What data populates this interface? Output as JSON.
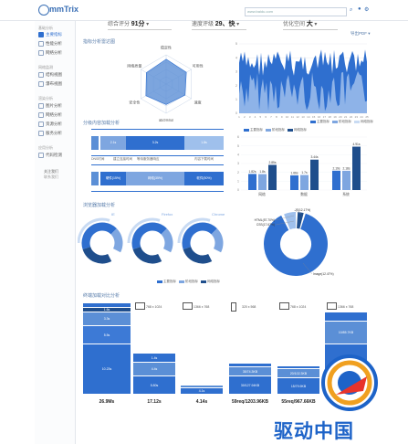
{
  "app": {
    "logo": "mmTrix",
    "search_placeholder": "www.baidu.com"
  },
  "sidebar": {
    "sections": [
      {
        "title": "基础分析",
        "items": [
          "主要指标",
          "性能分析",
          "网络分析"
        ]
      },
      {
        "title": "网络监测",
        "items": [
          "结构视图",
          "瀑布视图"
        ]
      },
      {
        "title": "渲染分析",
        "items": [
          "图片分析",
          "网络分析",
          "资源分析",
          "服务分析"
        ]
      },
      {
        "title": "应用分析",
        "items": [
          "代码检测"
        ]
      }
    ],
    "active_item": "主要指标",
    "footer": [
      "关注我们",
      "联系我们"
    ]
  },
  "header": {
    "scores": [
      {
        "label": "综合评分",
        "value": "91分"
      },
      {
        "label": "速度评级",
        "value": "29、快"
      },
      {
        "label": "优化空间",
        "value": "大"
      }
    ],
    "export_label": "导出PDF"
  },
  "sections": {
    "radar_title": "指标分析雷达图",
    "compare_title": "分级内容加载分析",
    "browser_title": "浏览器加载分析",
    "device_title": "终端加载对比分析"
  },
  "radar": {
    "axes": [
      "稳定性",
      "可用性",
      "速度",
      "响应时间",
      "安全性",
      "网络质量"
    ],
    "values": [
      0.85,
      0.8,
      0.75,
      0.7,
      0.8,
      0.78
    ]
  },
  "area_chart": {
    "y_ticks": [
      "0",
      "1",
      "2",
      "3",
      "4",
      "5"
    ],
    "x_ticks": [
      "1",
      "2",
      "3",
      "4",
      "5",
      "6",
      "7",
      "8",
      "9",
      "10",
      "11",
      "12",
      "13",
      "14",
      "15",
      "16",
      "17",
      "18",
      "19",
      "20",
      "21",
      "22",
      "23",
      "24",
      "25"
    ],
    "legend": [
      "主要指标",
      "阶段指标",
      "网络指标"
    ]
  },
  "stacked_bars": {
    "row1": {
      "segments": [
        "DNS",
        "2.1s",
        "3.2s",
        "1.8s"
      ],
      "labels": [
        "DNS时间",
        "建立连接时间",
        "等待服务器响应",
        "内容下载时间"
      ]
    },
    "row2": {
      "segments": [
        "0.2s",
        "硬件(15%)",
        "网络(35%)",
        "软件(50%)"
      ]
    }
  },
  "bar_chart": {
    "legend": [
      "主要指标",
      "阶段指标",
      "网络指标"
    ],
    "y_ticks": [
      "0",
      "1",
      "2",
      "3",
      "4",
      "5",
      "6"
    ],
    "groups": [
      "网络",
      "数据",
      "系统"
    ],
    "values": [
      [
        "1.82s",
        "1.8s",
        "2.85s"
      ],
      [
        "1.66s",
        "1.7s",
        "3.44s"
      ],
      [
        "2.19s",
        "2.18s",
        "4.91s"
      ]
    ]
  },
  "donuts": {
    "labels": [
      "IE",
      "Firefox",
      "Chrome"
    ],
    "legend": [
      "主要指标",
      "阶段指标",
      "网络指标"
    ]
  },
  "big_donut": {
    "labels": [
      "HTML(57.70%)",
      "CSS(17.67%)",
      "JS(12.17%)",
      "Image(12.47%)"
    ]
  },
  "devices": [
    {
      "label": "320 x 568",
      "total": "26.9Ms"
    },
    {
      "label": "768 x 1024",
      "total": "17.12s"
    },
    {
      "label": "1366 x 768",
      "total": "4.14s"
    },
    {
      "label": "320 x 568",
      "total": "59req/1203.96KB"
    },
    {
      "label": "768 x 1024",
      "total": "55req/967.66KB"
    },
    {
      "label": "1366 x 768",
      "total": ""
    }
  ],
  "watermark": "驱动中国",
  "colors": {
    "primary": "#2f6fcf",
    "light": "#7ea6e0",
    "dark": "#1f4e8c",
    "pale": "#c9dbf3"
  }
}
